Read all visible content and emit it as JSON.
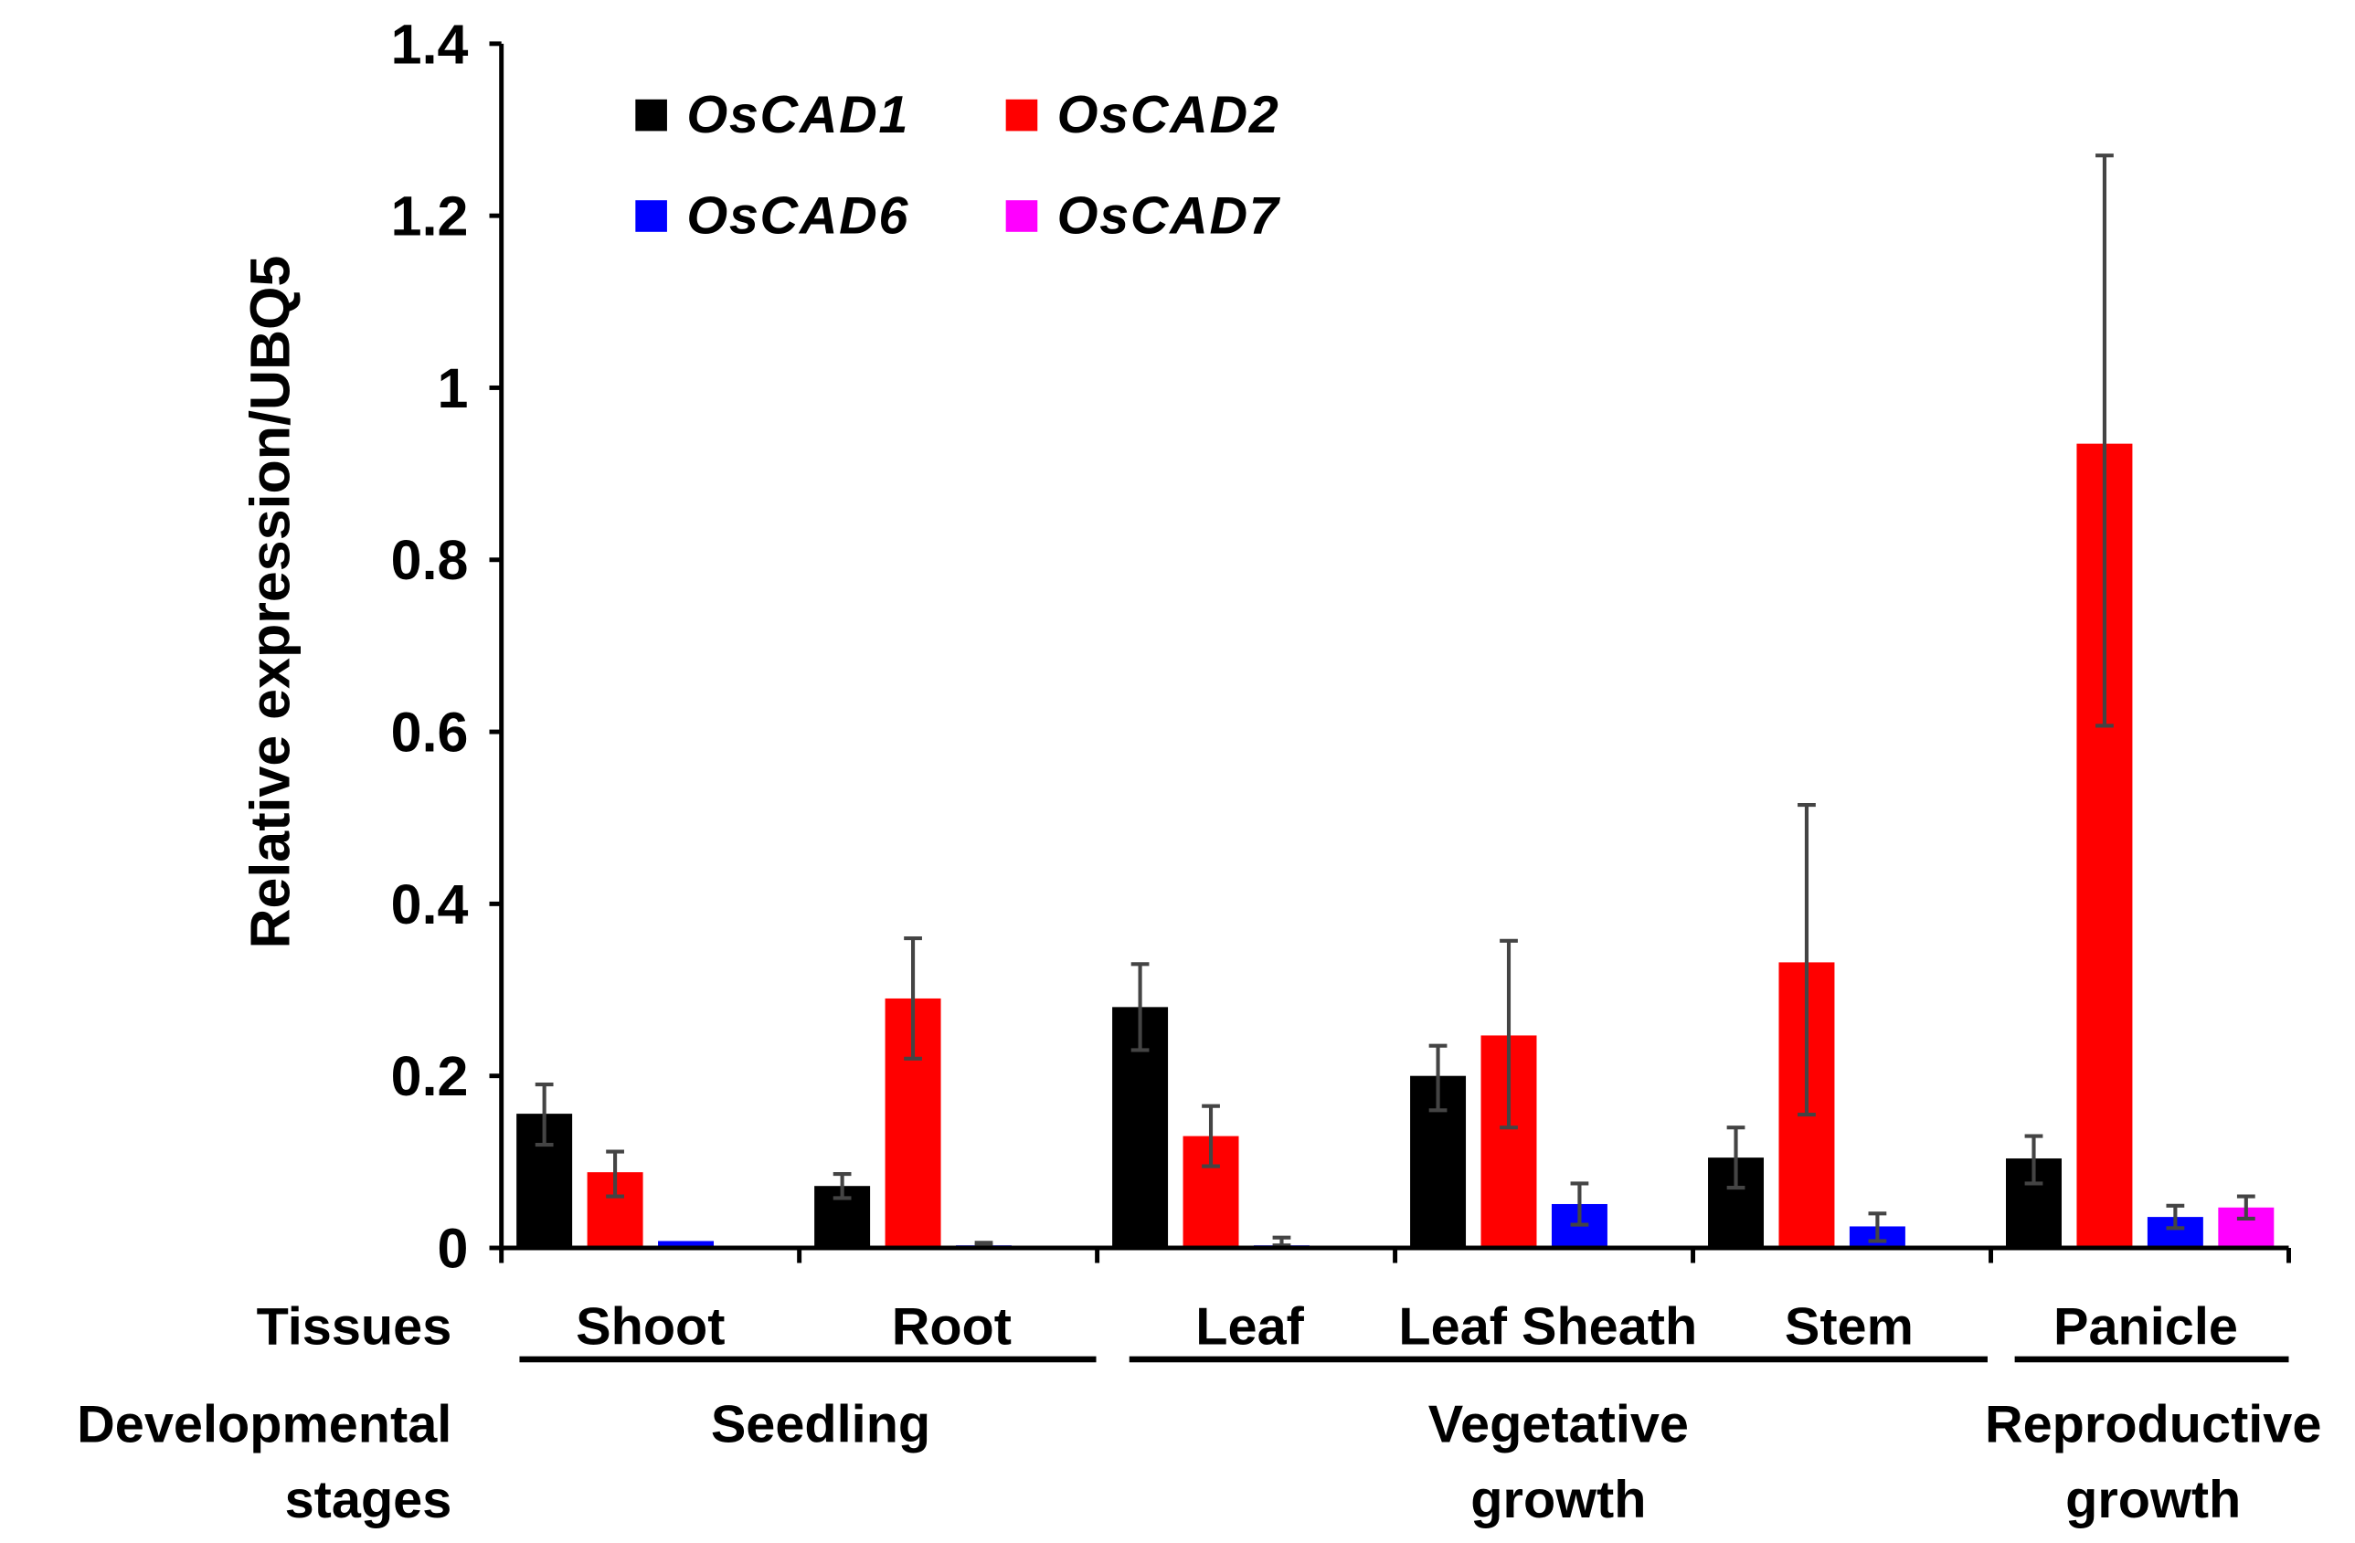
{
  "chart_data": {
    "type": "bar",
    "ylabel": "Relative expression/UBQ5",
    "ylim": [
      0,
      1.4
    ],
    "yticks": [
      "0",
      "0.2",
      "0.4",
      "0.6",
      "0.8",
      "1",
      "1.2",
      "1.4"
    ],
    "ytick_values": [
      0,
      0.2,
      0.4,
      0.6,
      0.8,
      1,
      1.2,
      1.4
    ],
    "legend_placement": "top-left",
    "categories": [
      "Shoot",
      "Root",
      "Leaf",
      "Leaf Sheath",
      "Stem",
      "Panicle"
    ],
    "row_labels": {
      "tissues": "Tissues",
      "stages_line1": "Developmental",
      "stages_line2": "stages"
    },
    "stages": [
      {
        "line1": "Seedling",
        "line2": ""
      },
      {
        "line1": "Vegetative",
        "line2": "growth"
      },
      {
        "line1": "Reproductive",
        "line2": "growth"
      }
    ],
    "series": [
      {
        "name": "OsCAD1",
        "color": "#000000",
        "values": [
          0.156,
          0.072,
          0.28,
          0.2,
          0.105,
          0.104
        ],
        "err_high": [
          0.19,
          0.086,
          0.33,
          0.235,
          0.14,
          0.13
        ],
        "err_low": [
          0.12,
          0.058,
          0.23,
          0.16,
          0.07,
          0.075
        ]
      },
      {
        "name": "OsCAD2",
        "color": "#ff0000",
        "values": [
          0.088,
          0.29,
          0.13,
          0.247,
          0.332,
          0.935
        ],
        "err_high": [
          0.112,
          0.36,
          0.165,
          0.357,
          0.515,
          1.27
        ],
        "err_low": [
          0.06,
          0.22,
          0.095,
          0.14,
          0.155,
          0.607
        ]
      },
      {
        "name": "OsCAD6",
        "color": "#0000ff",
        "values": [
          0.008,
          0.003,
          0.003,
          0.051,
          0.025,
          0.036
        ],
        "err_high": [
          0.008,
          0.006,
          0.012,
          0.075,
          0.04,
          0.049
        ],
        "err_low": [
          0.008,
          0.003,
          0.003,
          0.027,
          0.008,
          0.023
        ]
      },
      {
        "name": "OsCAD7",
        "color": "#ff00ff",
        "values": [
          0.002,
          0.001,
          0.002,
          0.002,
          0.002,
          0.047
        ],
        "err_high": [
          0.002,
          0.001,
          0.002,
          0.002,
          0.002,
          0.06
        ],
        "err_low": [
          0.002,
          0.001,
          0.002,
          0.002,
          0.002,
          0.034
        ]
      }
    ]
  }
}
